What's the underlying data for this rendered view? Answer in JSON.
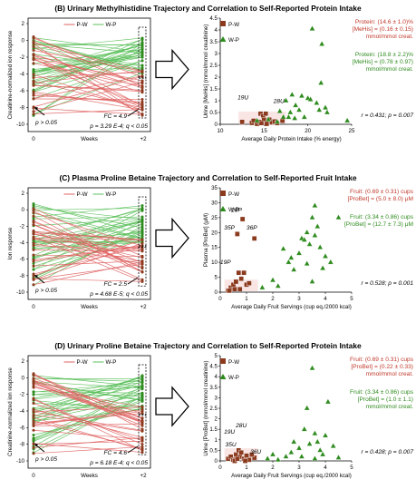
{
  "colors": {
    "pw": "#8b3a1e",
    "wp": "#2e8b1e",
    "pw_line": "#e06060",
    "wp_line": "#5cc05c",
    "pw_text": "#c0392b",
    "wp_text": "#2e8b1e"
  },
  "panels": [
    {
      "title": "(B) Urinary Methylhistidine Trajectory and Correlation to Self-Reported Protein Intake",
      "traj": {
        "ylabel": "Creatinine-normalized ion response",
        "xticks": [
          "0",
          "+2"
        ],
        "xmid": "Weeks",
        "yticks": [
          "2",
          "0",
          "-2",
          "-4",
          "-6",
          "-8",
          "-10"
        ],
        "legend": [
          "P-W",
          "W-P"
        ],
        "p0": "p > 0.05",
        "fc": "FC = 4.9",
        "stats": "p = 3.29 E-4; q < 0.05"
      },
      "chart_data": {
        "type": "scatter",
        "xlabel": "Average Daily Protein Intake (% energy)",
        "ylabel": "Urine [MeHis] (mmol/mmol creatinine)",
        "xlim": [
          10,
          25
        ],
        "ylim": [
          0,
          4.5
        ],
        "xticks": [
          10,
          15,
          20,
          25
        ],
        "yticks": [
          0,
          0.5,
          1,
          1.5,
          2,
          2.5,
          3,
          3.5,
          4,
          4.5
        ],
        "series": [
          {
            "name": "P-W",
            "marker": "square",
            "points": [
              [
                12.5,
                0.1
              ],
              [
                13.6,
                0.06
              ],
              [
                13.8,
                0.15
              ],
              [
                14.2,
                0.02
              ],
              [
                14.5,
                0.1
              ],
              [
                14.6,
                0.45
              ],
              [
                14.9,
                0.35
              ],
              [
                15.0,
                0.2
              ],
              [
                15.2,
                0.45
              ],
              [
                15.5,
                0.15
              ],
              [
                15.6,
                0.2
              ],
              [
                14.7,
                0.05
              ],
              [
                15.9,
                0.08
              ],
              [
                16.2,
                0.12
              ],
              [
                17.1,
                0.15
              ],
              [
                16.5,
                0.05
              ],
              [
                15.3,
                0.02
              ]
            ]
          },
          {
            "name": "W-P",
            "marker": "triangle",
            "points": [
              [
                14.2,
                0.15
              ],
              [
                15.5,
                0.2
              ],
              [
                16.5,
                0.1
              ],
              [
                17.2,
                0.3
              ],
              [
                17.5,
                1.0
              ],
              [
                17.8,
                0.3
              ],
              [
                18.0,
                0.5
              ],
              [
                18.5,
                0.25
              ],
              [
                18.6,
                0.8
              ],
              [
                19.0,
                0.6
              ],
              [
                19.3,
                1.2
              ],
              [
                19.6,
                0.3
              ],
              [
                20.0,
                1.1
              ],
              [
                20.3,
                1.05
              ],
              [
                20.5,
                4.05
              ],
              [
                21.0,
                0.9
              ],
              [
                21.3,
                0.6
              ],
              [
                21.5,
                1.75
              ],
              [
                21.6,
                3.4
              ],
              [
                22.0,
                0.7
              ],
              [
                22.2,
                0.5
              ],
              [
                24.5,
                0.15
              ],
              [
                16.8,
                0.55
              ],
              [
                18.2,
                1.25
              ]
            ]
          }
        ],
        "labels": [
          {
            "text": "19U",
            "x": 12.6,
            "y": 1.05
          },
          {
            "text": "28U",
            "x": 16.7,
            "y": 0.9
          }
        ],
        "annotations": {
          "pw": [
            "Protein: (14.6 ± 1.0)%",
            "[MeHis] = (0.16 ± 0.15)",
            "mmol/mmol creat."
          ],
          "wp": [
            "Protein: (18.8 ± 2.2)%",
            "[MeHis] = (0.78 ± 0.97)",
            "mmol/mmol creat."
          ],
          "corr": "r = 0.431; p = 0.007"
        }
      }
    },
    {
      "title": "(C) Plasma Proline Betaine Trajectory and Correlation to Self-Reported Fruit Intake",
      "traj": {
        "ylabel": "Ion response",
        "xticks": [
          "0",
          "+2"
        ],
        "xmid": "Weeks",
        "yticks": [
          "2",
          "0",
          "-2",
          "-4",
          "-6",
          "-8",
          "-10"
        ],
        "legend": [
          "P-W",
          "W-P"
        ],
        "p0": "p > 0.05",
        "fc": "FC = 2.5",
        "stats": "p = 4.68 E-5; q < 0.05"
      },
      "chart_data": {
        "type": "scatter",
        "xlabel": "Average Daily Fruit Servings (cup eq./2000 kcal)",
        "ylabel": "Plasma [ProBet] (μM)",
        "xlim": [
          0,
          5
        ],
        "ylim": [
          0,
          35
        ],
        "xticks": [
          0,
          1,
          2,
          3,
          4,
          5
        ],
        "yticks": [
          0,
          5,
          10,
          15,
          20,
          25,
          30,
          35
        ],
        "series": [
          {
            "name": "P-W",
            "marker": "square",
            "points": [
              [
                0.3,
                0.5
              ],
              [
                0.4,
                1.5
              ],
              [
                0.5,
                2.5
              ],
              [
                0.6,
                3.5
              ],
              [
                0.7,
                6.5
              ],
              [
                0.8,
                4.5
              ],
              [
                0.9,
                6.5
              ],
              [
                1.0,
                2.5
              ],
              [
                0.55,
                1.0
              ],
              [
                0.65,
                19.5
              ],
              [
                0.85,
                24.5
              ],
              [
                1.3,
                18.0
              ],
              [
                0.35,
                0.5
              ],
              [
                1.1,
                3.0
              ],
              [
                0.75,
                1.0
              ]
            ]
          },
          {
            "name": "W-P",
            "marker": "triangle",
            "points": [
              [
                1.6,
                1.5
              ],
              [
                2.0,
                4.0
              ],
              [
                2.4,
                14.5
              ],
              [
                2.6,
                10.0
              ],
              [
                2.7,
                11.5
              ],
              [
                2.8,
                7.5
              ],
              [
                3.0,
                13.0
              ],
              [
                3.1,
                18.0
              ],
              [
                3.2,
                17.5
              ],
              [
                3.3,
                20.0
              ],
              [
                3.4,
                16.0
              ],
              [
                3.5,
                25.0
              ],
              [
                3.6,
                29.0
              ],
              [
                3.7,
                22.0
              ],
              [
                3.8,
                15.0
              ],
              [
                4.0,
                12.0
              ],
              [
                4.2,
                10.0
              ],
              [
                4.5,
                25.0
              ],
              [
                3.3,
                9.5
              ],
              [
                3.5,
                3.5
              ],
              [
                2.2,
                2.0
              ],
              [
                3.6,
                19.0
              ],
              [
                3.9,
                8.0
              ]
            ]
          }
        ],
        "labels": [
          {
            "text": "28P",
            "x": 0.62,
            "y": 27.0
          },
          {
            "text": "35P",
            "x": 0.35,
            "y": 21.0
          },
          {
            "text": "36P",
            "x": 1.2,
            "y": 21.0
          },
          {
            "text": "19P",
            "x": 0.2,
            "y": 9.5
          }
        ],
        "annotations": {
          "pw": [
            "Fruit: (0.69 ± 0.31) cups",
            "[ProBet] = (5.0 ± 8.0) μM"
          ],
          "wp": [
            "Fruit: (3.34 ± 0.86) cups",
            "[ProBet] = (12.7 ± 7.3) μM"
          ],
          "corr": "r = 0.528; p = 0.001"
        }
      }
    },
    {
      "title": "(D) Urinary Proline Betaine Trajectory and Correlation to Self-Reported Protein Intake",
      "traj": {
        "ylabel": "Creatinine-normalized ion response",
        "xticks": [
          "0",
          "+2"
        ],
        "xmid": "Weeks",
        "yticks": [
          "2",
          "0",
          "-2",
          "-4",
          "-6",
          "-8",
          "-10"
        ],
        "legend": [
          "P-W",
          "W-P"
        ],
        "p0": "p > 0.05",
        "fc": "FC = 4.6",
        "stats": "p = 6.18 E-4; q < 0.05"
      },
      "chart_data": {
        "type": "scatter",
        "xlabel": "Average Daily Fruit Servings (cup eq./2000 kcal)",
        "ylabel": "Urine [ProBet] (mmol/mmol creatinine)",
        "xlim": [
          0,
          5
        ],
        "ylim": [
          0,
          5
        ],
        "xticks": [
          0,
          1,
          2,
          3,
          4,
          5
        ],
        "yticks": [
          0,
          0.5,
          1,
          1.5,
          2,
          2.5,
          3,
          3.5,
          4,
          4.5,
          5
        ],
        "series": [
          {
            "name": "P-W",
            "marker": "square",
            "points": [
              [
                0.3,
                0.1
              ],
              [
                0.4,
                0.2
              ],
              [
                0.5,
                0.05
              ],
              [
                0.6,
                0.3
              ],
              [
                0.7,
                0.5
              ],
              [
                0.75,
                0.2
              ],
              [
                0.8,
                0.4
              ],
              [
                0.9,
                0.1
              ],
              [
                1.0,
                0.25
              ],
              [
                1.1,
                0.05
              ],
              [
                1.3,
                0.15
              ],
              [
                0.55,
                0.0
              ],
              [
                0.65,
                0.1
              ],
              [
                0.95,
                0.0
              ],
              [
                1.2,
                0.3
              ]
            ]
          },
          {
            "name": "W-P",
            "marker": "triangle",
            "points": [
              [
                1.8,
                0.1
              ],
              [
                2.0,
                0.3
              ],
              [
                2.5,
                0.2
              ],
              [
                2.7,
                0.4
              ],
              [
                2.8,
                0.9
              ],
              [
                3.0,
                0.6
              ],
              [
                3.2,
                1.5
              ],
              [
                3.3,
                2.5
              ],
              [
                3.4,
                0.8
              ],
              [
                3.5,
                4.4
              ],
              [
                3.6,
                1.3
              ],
              [
                3.7,
                0.9
              ],
              [
                3.8,
                0.5
              ],
              [
                3.9,
                0.3
              ],
              [
                4.0,
                1.2
              ],
              [
                4.1,
                2.8
              ],
              [
                4.3,
                0.7
              ],
              [
                4.5,
                0.15
              ],
              [
                3.1,
                0.2
              ],
              [
                3.6,
                0.1
              ],
              [
                2.2,
                0.05
              ]
            ]
          }
        ],
        "labels": [
          {
            "text": "19U",
            "x": 0.35,
            "y": 1.3
          },
          {
            "text": "28U",
            "x": 0.8,
            "y": 1.6
          },
          {
            "text": "35U",
            "x": 0.4,
            "y": 0.7
          },
          {
            "text": "36U",
            "x": 1.35,
            "y": 0.35
          }
        ],
        "annotations": {
          "pw": [
            "Fruit: (0.69 ± 0.31) cups",
            "[ProBet] = (0.22 ± 0.33)",
            "mmol/mmol creat."
          ],
          "wp": [
            "Fruit: (3.34 ± 0.86) cups",
            "[ProBet] = (1.0 ± 1.1)",
            "mmol/mmol creat."
          ],
          "corr": "r = 0.428; p = 0.007"
        }
      }
    }
  ]
}
